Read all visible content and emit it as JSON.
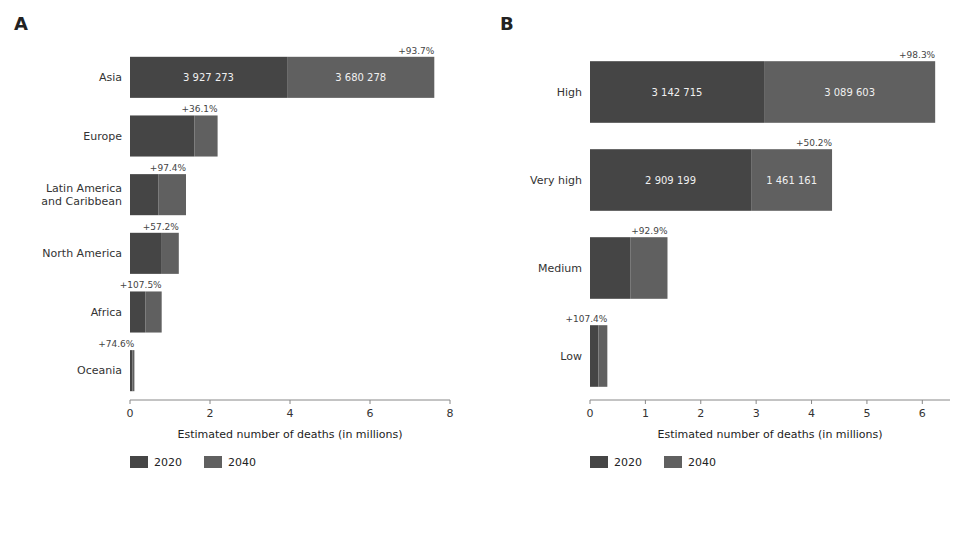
{
  "chart_data": [
    {
      "type": "bar",
      "title": "A",
      "orientation": "horizontal",
      "stacked": true,
      "grid": false,
      "legend": "bottom",
      "categories": [
        "Asia",
        "Europe",
        "Latin America\nand Caribbean",
        "North America",
        "Africa",
        "Oceania"
      ],
      "series": [
        {
          "name": "2020",
          "color": "#454545",
          "values": [
            3.927273,
            1.607,
            0.706,
            0.776,
            0.382,
            0.063
          ],
          "value_labels": [
            "3 927 273",
            null,
            null,
            null,
            null,
            null
          ]
        },
        {
          "name": "2040",
          "color": "#606060",
          "values": [
            3.680278,
            0.583,
            0.694,
            0.444,
            0.41,
            0.047
          ],
          "value_labels": [
            "3 680 278",
            null,
            null,
            null,
            null,
            null
          ]
        }
      ],
      "annotations": [
        "+93.7%",
        "+36.1%",
        "+97.4%",
        "+57.2%",
        "+107.5%",
        "+74.6%"
      ],
      "xlabel": "Estimated number of deaths (in millions)",
      "xlim": [
        0,
        8
      ],
      "xticks": [
        0,
        2,
        4,
        6,
        8
      ]
    },
    {
      "type": "bar",
      "title": "B",
      "orientation": "horizontal",
      "stacked": true,
      "grid": false,
      "legend": "bottom",
      "categories": [
        "High",
        "Very high",
        "Medium",
        "Low"
      ],
      "series": [
        {
          "name": "2020",
          "color": "#454545",
          "values": [
            3.142715,
            2.909199,
            0.726,
            0.153
          ],
          "value_labels": [
            "3 142 715",
            "2 909 199",
            null,
            null
          ]
        },
        {
          "name": "2040",
          "color": "#606060",
          "values": [
            3.089603,
            1.461161,
            0.673,
            0.16
          ],
          "value_labels": [
            "3 089 603",
            "1 461 161",
            null,
            null
          ]
        }
      ],
      "annotations": [
        "+98.3%",
        "+50.2%",
        "+92.9%",
        "+107.4%"
      ],
      "xlabel": "Estimated number of deaths (in millions)",
      "xlim": [
        0,
        6.5
      ],
      "xticks": [
        0,
        1,
        2,
        3,
        4,
        5,
        6
      ]
    }
  ]
}
